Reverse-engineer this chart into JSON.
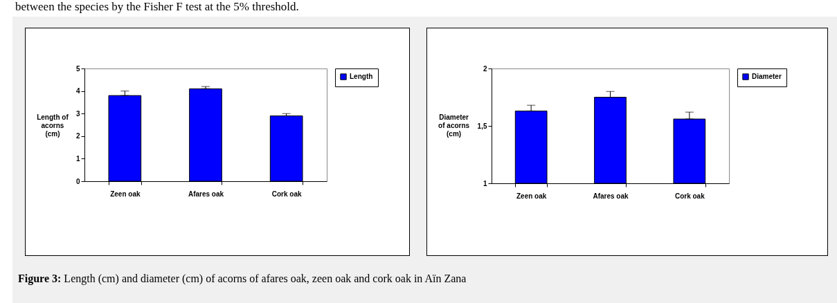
{
  "chart_data": [
    {
      "type": "bar",
      "ylabel": "Length of acorns (cm)",
      "categories": [
        "Zeen oak",
        "Afares oak",
        "Cork oak"
      ],
      "series": [
        {
          "name": "Length",
          "color": "#0000ff",
          "values": [
            3.8,
            4.1,
            2.9
          ],
          "errors": [
            [
              3.8,
              4.0
            ],
            [
              4.1,
              4.2
            ],
            [
              2.9,
              3.0
            ]
          ]
        }
      ],
      "ylim": [
        0,
        5
      ],
      "yticks": [
        0,
        1,
        2,
        3,
        4,
        5
      ],
      "grid": false,
      "legend": "right",
      "annotations": [
        "between the species by the Fisher F test at the 5% threshold."
      ]
    },
    {
      "type": "bar",
      "ylabel": "Diameter of acorns (cm)",
      "categories": [
        "Zeen oak",
        "Afares oak",
        "Cork oak"
      ],
      "series": [
        {
          "name": "Diameter",
          "color": "#0000ff",
          "values": [
            1.63,
            1.75,
            1.56
          ],
          "errors": [
            [
              1.63,
              1.68
            ],
            [
              1.75,
              1.8
            ],
            [
              1.56,
              1.62
            ]
          ]
        }
      ],
      "ylim": [
        1,
        2
      ],
      "yticks": [
        1,
        {
          "value": 1.5,
          "label": "1,5"
        },
        2
      ],
      "grid": false,
      "legend": "right",
      "annotations": [
        "Figure 3: Length (cm) and diameter (cm) of acorns of afares oak, zeen oak and cork oak in Aïn Zana"
      ]
    }
  ]
}
